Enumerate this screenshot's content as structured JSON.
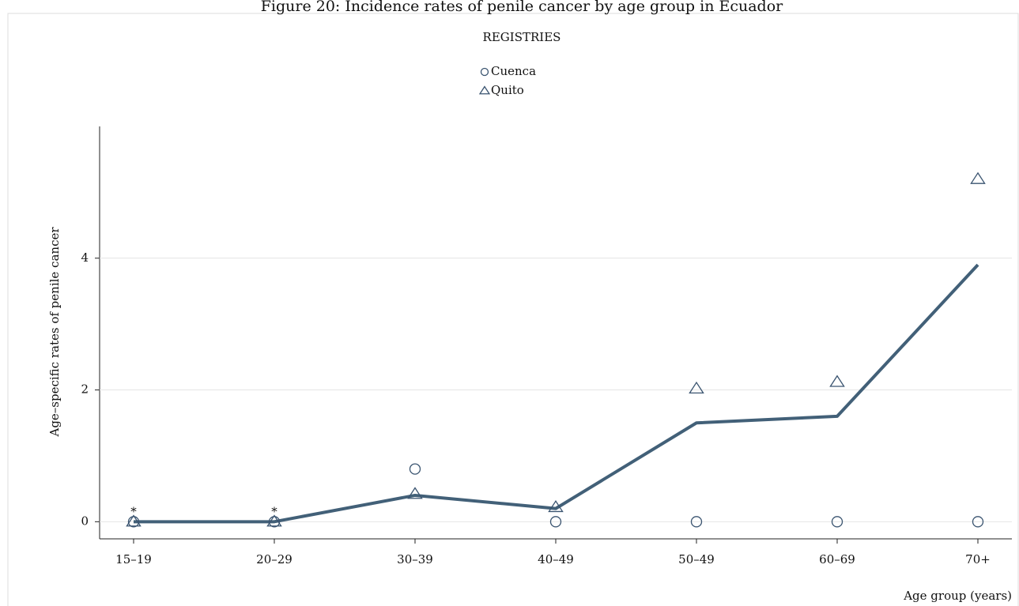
{
  "chart_data": {
    "type": "line",
    "title": "Figure 20: Incidence rates of penile cancer by age group in Ecuador",
    "legend_title": "REGISTRIES",
    "x_label": "Age group (years)",
    "y_label": "Age–specific rates of penile cancer",
    "categories": [
      "15–19",
      "20–29",
      "30–39",
      "40–49",
      "50–49",
      "60–69",
      "70+"
    ],
    "series": [
      {
        "name": "Cuenca",
        "marker": "circle",
        "color": "#3a5470",
        "values": [
          0,
          0,
          0.8,
          0,
          0,
          0,
          0
        ]
      },
      {
        "name": "Quito",
        "marker": "triangle",
        "color": "#3a5470",
        "values": [
          0,
          0,
          0.42,
          0.22,
          2.02,
          2.12,
          5.2
        ]
      },
      {
        "marker": "line",
        "color": "#426078",
        "values": [
          0,
          0,
          0.4,
          0.2,
          1.5,
          1.6,
          3.9
        ]
      }
    ],
    "annotations": [
      {
        "text": "*",
        "category": 0,
        "y": 0
      },
      {
        "text": "*",
        "category": 1,
        "y": 0
      }
    ],
    "ylim": [
      -0.26,
      6.0
    ],
    "yticks": [
      0,
      2,
      4
    ],
    "grid": true
  }
}
